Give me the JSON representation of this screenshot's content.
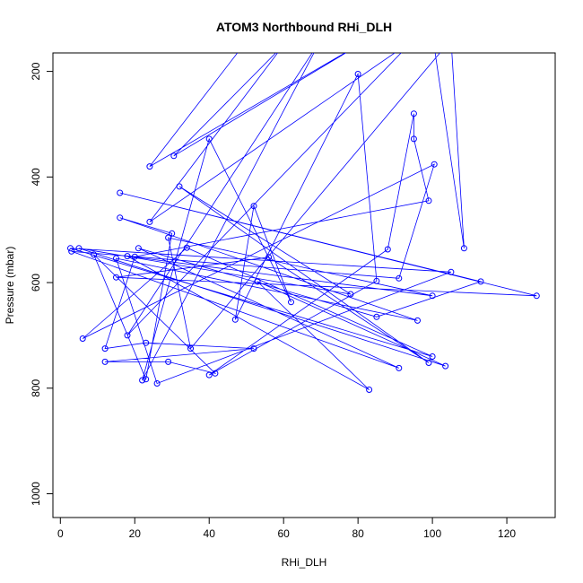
{
  "chart_data": {
    "type": "line",
    "title": "ATOM3 Northbound RHi_DLH",
    "xlabel": "RHi_DLH",
    "ylabel": "Pressure (mbar)",
    "xlim": [
      -2,
      133
    ],
    "ylim": [
      1045,
      165
    ],
    "y_reversed": true,
    "grid": false,
    "legend": "none",
    "x_ticks": [
      "0",
      "20",
      "40",
      "60",
      "80",
      "100",
      "120"
    ],
    "y_ticks": [
      "200",
      "400",
      "600",
      "800",
      "1000"
    ],
    "series": [
      {
        "color": "#0000ff",
        "marker": "open-circle",
        "points": [
          [
            50,
            143
          ],
          [
            24,
            380
          ],
          [
            85,
            130
          ],
          [
            30.5,
            360
          ],
          [
            60,
            150
          ],
          [
            24,
            485
          ],
          [
            95,
            140
          ],
          [
            18,
            700
          ],
          [
            70,
            140
          ],
          [
            22,
            785
          ],
          [
            40,
            328
          ],
          [
            62,
            637
          ],
          [
            52,
            455
          ],
          [
            47,
            670
          ],
          [
            80,
            205
          ],
          [
            85,
            597
          ],
          [
            40,
            775
          ],
          [
            88,
            537
          ],
          [
            95,
            280
          ],
          [
            95,
            328
          ],
          [
            99,
            445
          ],
          [
            20,
            551
          ],
          [
            12,
            725
          ],
          [
            23,
            714
          ],
          [
            52,
            725
          ],
          [
            12,
            750
          ],
          [
            29,
            750
          ],
          [
            41.6,
            772
          ],
          [
            9,
            547
          ],
          [
            23,
            783
          ],
          [
            30,
            507
          ],
          [
            16,
            477
          ],
          [
            96,
            672
          ],
          [
            15,
            554
          ],
          [
            26,
            791
          ],
          [
            105,
            580
          ],
          [
            2.7,
            535
          ],
          [
            100,
            740
          ],
          [
            34,
            534
          ],
          [
            6,
            706
          ],
          [
            100.5,
            376
          ],
          [
            91,
            592
          ],
          [
            3,
            541
          ],
          [
            91,
            762
          ],
          [
            21,
            535
          ],
          [
            85,
            665
          ],
          [
            113,
            598
          ],
          [
            16,
            430
          ],
          [
            128,
            625
          ],
          [
            15,
            590
          ],
          [
            56,
            552
          ],
          [
            99,
            752
          ],
          [
            32,
            418
          ],
          [
            78,
            622
          ],
          [
            5,
            535
          ],
          [
            103.5,
            758
          ],
          [
            53,
            598
          ],
          [
            83,
            803
          ],
          [
            18,
            550
          ],
          [
            100,
            625
          ],
          [
            29,
            515
          ],
          [
            35,
            725
          ],
          [
            105,
            140
          ],
          [
            108.5,
            535
          ],
          [
            100,
            130
          ]
        ]
      }
    ]
  }
}
